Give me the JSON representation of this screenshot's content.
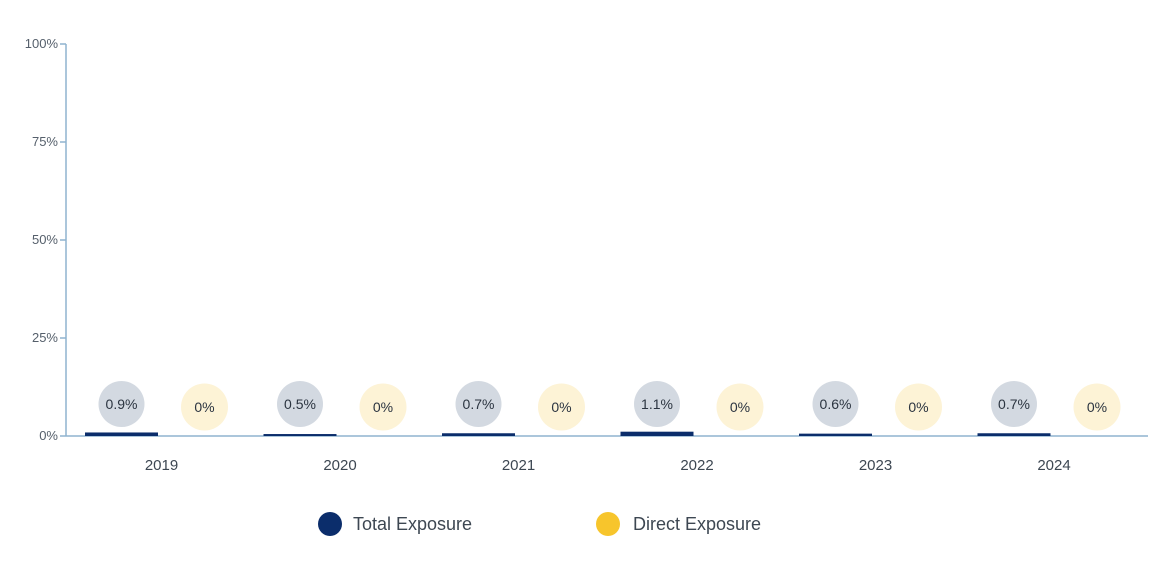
{
  "chart_data": {
    "type": "bar",
    "categories": [
      "2019",
      "2020",
      "2021",
      "2022",
      "2023",
      "2024"
    ],
    "series": [
      {
        "name": "Total Exposure",
        "color": "#0b2d6b",
        "label_bg": "#d3d9e1",
        "values": [
          0.9,
          0.5,
          0.7,
          1.1,
          0.6,
          0.7
        ],
        "labels": [
          "0.9%",
          "0.5%",
          "0.7%",
          "1.1%",
          "0.6%",
          "0.7%"
        ]
      },
      {
        "name": "Direct Exposure",
        "color": "#f7c52c",
        "label_bg": "#fdf3d6",
        "values": [
          0,
          0,
          0,
          0,
          0,
          0
        ],
        "labels": [
          "0%",
          "0%",
          "0%",
          "0%",
          "0%",
          "0%"
        ]
      }
    ],
    "yticks": [
      0,
      25,
      50,
      75,
      100
    ],
    "ytick_labels": [
      "0%",
      "25%",
      "50%",
      "75%",
      "100%"
    ],
    "ylim": [
      0,
      100
    ],
    "axis_color": "#8fb3cf",
    "grid": false,
    "legend_position": "bottom-center"
  }
}
